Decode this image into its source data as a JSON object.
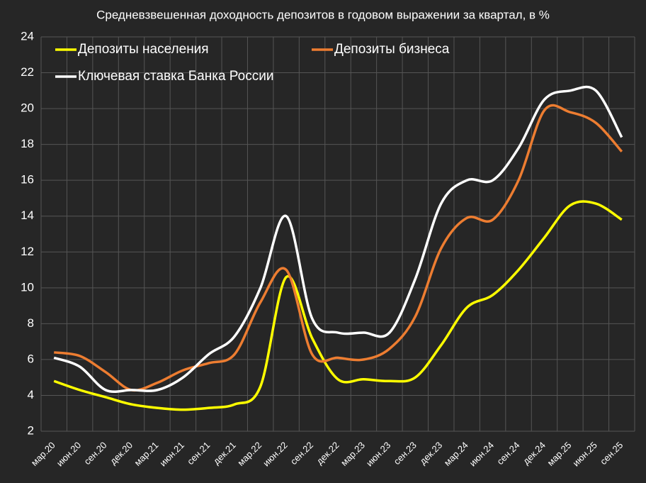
{
  "chart_data": {
    "type": "line",
    "title": "Средневзвешенная доходность депозитов в годовом выражении за квартал, в %",
    "categories": [
      "мар.20",
      "июн.20",
      "сен.20",
      "дек.20",
      "мар.21",
      "июн.21",
      "сен.21",
      "дек.21",
      "мар.22",
      "июн.22",
      "сен.22",
      "дек.22",
      "мар.23",
      "июн.23",
      "сен.23",
      "дек.23",
      "мар.24",
      "июн.24",
      "сен.24",
      "дек.24",
      "мар.25",
      "июн.25",
      "сен.25"
    ],
    "series": [
      {
        "name": "Депозиты населения",
        "color": "#ffff00",
        "values": [
          4.8,
          4.3,
          3.9,
          3.5,
          3.3,
          3.2,
          3.3,
          3.5,
          4.5,
          10.6,
          7.2,
          4.9,
          4.9,
          4.8,
          5.0,
          6.8,
          8.9,
          9.6,
          11.0,
          12.8,
          14.6,
          14.7,
          13.8
        ]
      },
      {
        "name": "Депозиты бизнеса",
        "color": "#ed7d31",
        "values": [
          6.4,
          6.2,
          5.3,
          4.3,
          4.7,
          5.4,
          5.8,
          6.3,
          9.2,
          11.0,
          6.3,
          6.1,
          6.0,
          6.6,
          8.4,
          12.2,
          13.9,
          13.8,
          16.0,
          19.9,
          19.8,
          19.2,
          17.6
        ]
      },
      {
        "name": "Ключевая ставка Банка России",
        "color": "#ffffff",
        "values": [
          6.1,
          5.6,
          4.3,
          4.3,
          4.3,
          5.0,
          6.3,
          7.3,
          10.0,
          14.0,
          8.3,
          7.5,
          7.5,
          7.5,
          10.5,
          14.7,
          16.0,
          16.0,
          17.8,
          20.5,
          21.0,
          21.0,
          18.4
        ]
      }
    ],
    "ylim": [
      2,
      24
    ],
    "yticks": [
      2,
      4,
      6,
      8,
      10,
      12,
      14,
      16,
      18,
      20,
      22,
      24
    ],
    "grid": true
  }
}
